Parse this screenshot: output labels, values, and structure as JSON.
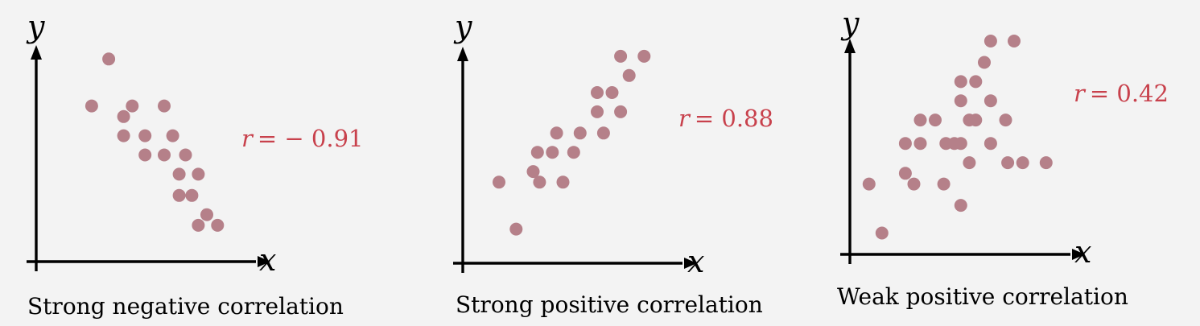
{
  "colors": {
    "background": "#f3f3f3",
    "point": "#b58089",
    "annotation": "#c8414c",
    "axis": "#000000"
  },
  "chart_data": [
    {
      "type": "scatter",
      "xlabel": "x",
      "ylabel": "y",
      "xlim": [
        0,
        10
      ],
      "ylim": [
        0,
        10
      ],
      "grid": false,
      "annotation": {
        "variable": "r",
        "value": "= − 0.91"
      },
      "caption": "Strong negative correlation",
      "points": [
        [
          3.4,
          9.5
        ],
        [
          2.6,
          7.3
        ],
        [
          4.5,
          7.3
        ],
        [
          6.0,
          7.3
        ],
        [
          4.1,
          6.8
        ],
        [
          4.1,
          5.9
        ],
        [
          5.1,
          5.9
        ],
        [
          6.4,
          5.9
        ],
        [
          5.1,
          5.0
        ],
        [
          6.0,
          5.0
        ],
        [
          7.0,
          5.0
        ],
        [
          6.7,
          4.1
        ],
        [
          7.6,
          4.1
        ],
        [
          6.7,
          3.1
        ],
        [
          7.3,
          3.1
        ],
        [
          8.0,
          2.2
        ],
        [
          7.6,
          1.7
        ],
        [
          8.5,
          1.7
        ]
      ]
    },
    {
      "type": "scatter",
      "xlabel": "x",
      "ylabel": "y",
      "xlim": [
        0,
        10
      ],
      "ylim": [
        0,
        10
      ],
      "grid": false,
      "annotation": {
        "variable": "r",
        "value": "= 0.88"
      },
      "caption": "Strong positive correlation",
      "points": [
        [
          7.4,
          9.7
        ],
        [
          8.5,
          9.7
        ],
        [
          7.8,
          8.8
        ],
        [
          6.3,
          8.0
        ],
        [
          7.0,
          8.0
        ],
        [
          6.3,
          7.1
        ],
        [
          7.4,
          7.1
        ],
        [
          4.4,
          6.1
        ],
        [
          5.5,
          6.1
        ],
        [
          6.6,
          6.1
        ],
        [
          3.5,
          5.2
        ],
        [
          4.2,
          5.2
        ],
        [
          5.2,
          5.2
        ],
        [
          3.3,
          4.3
        ],
        [
          3.6,
          3.8
        ],
        [
          4.7,
          3.8
        ],
        [
          1.7,
          3.8
        ],
        [
          2.5,
          1.6
        ]
      ]
    },
    {
      "type": "scatter",
      "xlabel": "x",
      "ylabel": "y",
      "xlim": [
        0,
        10
      ],
      "ylim": [
        0,
        10
      ],
      "grid": false,
      "annotation": {
        "variable": "r",
        "value": "= 0.42"
      },
      "caption": "Weak positive correlation",
      "points": [
        [
          6.6,
          10.0
        ],
        [
          7.7,
          10.0
        ],
        [
          6.3,
          9.0
        ],
        [
          5.2,
          8.1
        ],
        [
          5.9,
          8.1
        ],
        [
          5.2,
          7.2
        ],
        [
          6.6,
          7.2
        ],
        [
          3.3,
          6.3
        ],
        [
          4.0,
          6.3
        ],
        [
          5.6,
          6.3
        ],
        [
          5.9,
          6.3
        ],
        [
          7.3,
          6.3
        ],
        [
          2.6,
          5.2
        ],
        [
          3.3,
          5.2
        ],
        [
          4.5,
          5.2
        ],
        [
          4.9,
          5.2
        ],
        [
          5.2,
          5.2
        ],
        [
          6.6,
          5.2
        ],
        [
          5.6,
          4.3
        ],
        [
          7.4,
          4.3
        ],
        [
          8.1,
          4.3
        ],
        [
          9.2,
          4.3
        ],
        [
          2.6,
          3.8
        ],
        [
          3.0,
          3.3
        ],
        [
          4.4,
          3.3
        ],
        [
          0.9,
          3.3
        ],
        [
          5.2,
          2.3
        ],
        [
          1.5,
          1.0
        ]
      ]
    }
  ]
}
